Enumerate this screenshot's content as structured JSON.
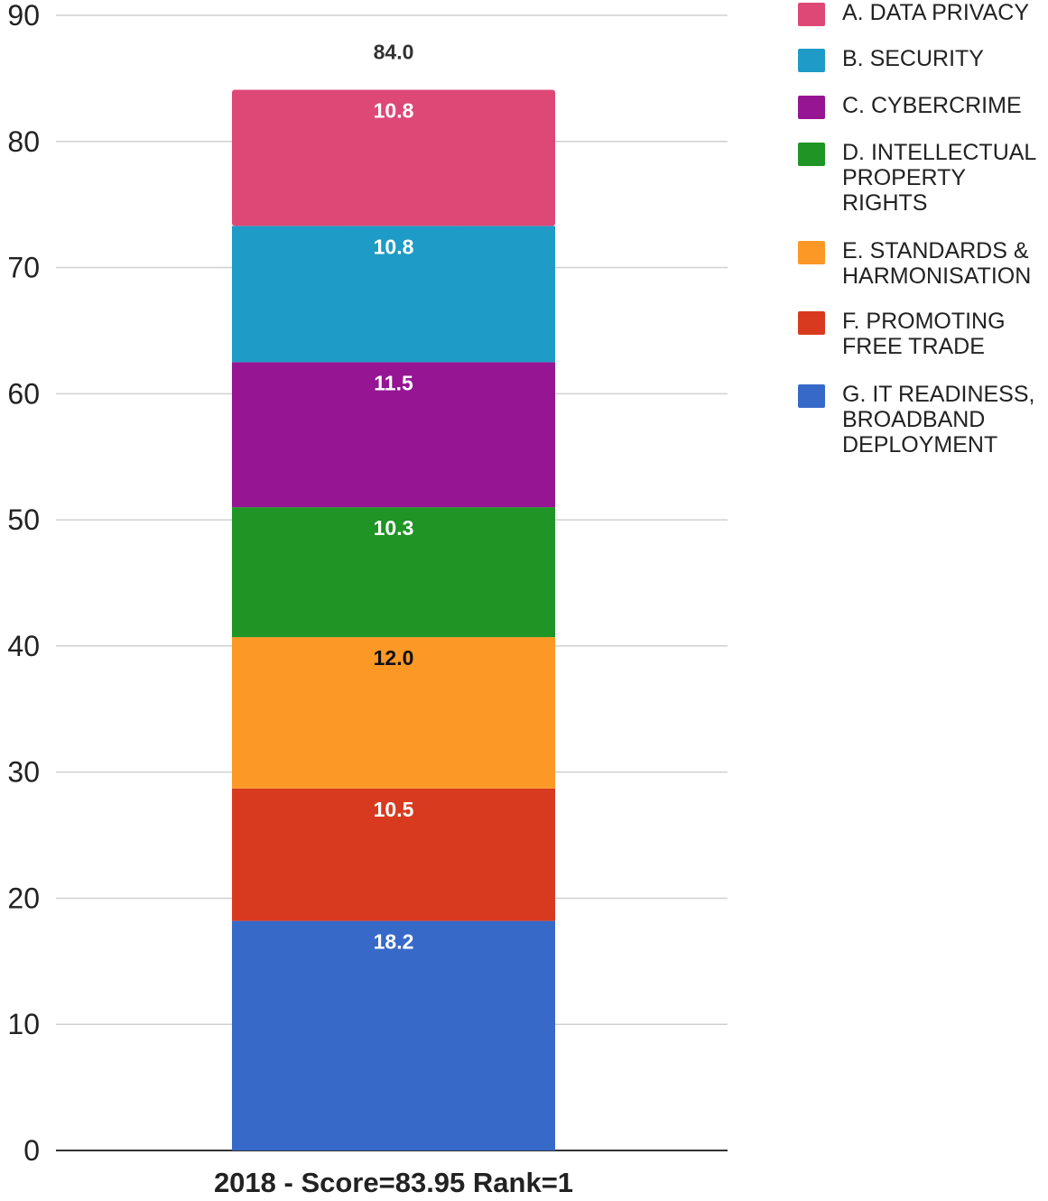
{
  "chart_data": {
    "type": "bar",
    "stacked": true,
    "categories": [
      "2018 - Score=83.95 Rank=1"
    ],
    "series": [
      {
        "name": "G. IT READINESS,\nBROADBAND\nDEPLOYMENT",
        "values": [
          18.2
        ],
        "color": "#3769C9",
        "label_color": "#ffffff"
      },
      {
        "name": "F. PROMOTING\nFREE TRADE",
        "values": [
          10.5
        ],
        "color": "#D83A20",
        "label_color": "#ffffff"
      },
      {
        "name": "E. STANDARDS &\nHARMONISATION",
        "values": [
          12.0
        ],
        "color": "#FC9826",
        "label_color": "#111111"
      },
      {
        "name": "D. INTELLECTUAL\nPROPERTY\nRIGHTS",
        "values": [
          10.3
        ],
        "color": "#1E9524",
        "label_color": "#ffffff"
      },
      {
        "name": "C. CYBERCRIME",
        "values": [
          11.5
        ],
        "color": "#951593",
        "label_color": "#ffffff"
      },
      {
        "name": "B. SECURITY",
        "values": [
          10.8
        ],
        "color": "#1E9BC6",
        "label_color": "#ffffff"
      },
      {
        "name": "A. DATA PRIVACY",
        "values": [
          10.8
        ],
        "color": "#DD4876",
        "label_color": "#ffffff"
      }
    ],
    "segment_labels": [
      "18.2",
      "10.5",
      "12.0",
      "10.3",
      "11.5",
      "10.8",
      "10.8"
    ],
    "total_label": "84.0",
    "ylim": [
      0,
      90
    ],
    "yticks": [
      0,
      10,
      20,
      30,
      40,
      50,
      60,
      70,
      80,
      90
    ],
    "grid": true,
    "legend_position": "right",
    "legend_order": [
      "A. DATA PRIVACY",
      "B. SECURITY",
      "C. CYBERCRIME",
      "D. INTELLECTUAL\nPROPERTY\nRIGHTS",
      "E. STANDARDS &\nHARMONISATION",
      "F. PROMOTING\nFREE TRADE",
      "G. IT READINESS,\nBROADBAND\nDEPLOYMENT"
    ]
  }
}
